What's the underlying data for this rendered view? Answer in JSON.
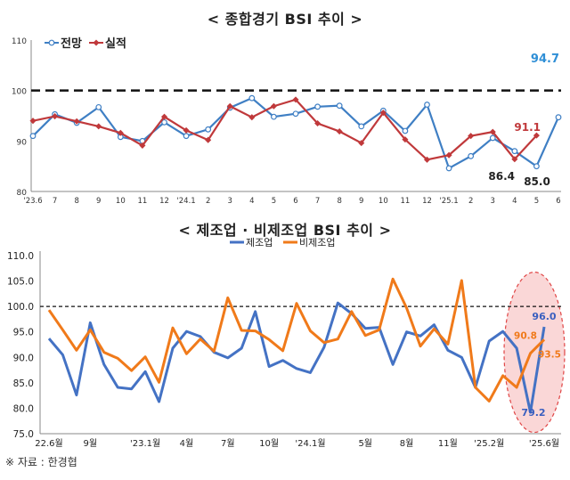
{
  "source": "※ 자료 : 한경협",
  "chart_data": [
    {
      "type": "line",
      "title": "< 종합경기 BSI 추이 >",
      "ylim": [
        80,
        110
      ],
      "yticks": [
        "80",
        "90",
        "100",
        "110"
      ],
      "reference_line": 100,
      "x_tick_labels": [
        "'23.6",
        "7",
        "8",
        "9",
        "10",
        "11",
        "12",
        "'24.1",
        "2",
        "3",
        "4",
        "5",
        "6",
        "7",
        "8",
        "9",
        "10",
        "11",
        "12",
        "'25.1",
        "2",
        "3",
        "4",
        "5",
        "6"
      ],
      "series": [
        {
          "name": "전망",
          "color": "#3f7fc4",
          "values": [
            91.0,
            95.3,
            93.6,
            96.7,
            90.8,
            90.0,
            93.7,
            91.0,
            92.3,
            96.6,
            98.5,
            94.8,
            95.4,
            96.8,
            97.0,
            92.9,
            96.0,
            92.0,
            97.2,
            84.6,
            87.0,
            90.6,
            88.0,
            85.0,
            94.7
          ]
        },
        {
          "name": "실적",
          "color": "#c0393b",
          "values": [
            94.0,
            94.9,
            93.9,
            92.9,
            91.6,
            89.1,
            94.8,
            92.1,
            90.2,
            96.9,
            94.7,
            96.9,
            98.2,
            93.5,
            91.9,
            89.6,
            95.6,
            90.3,
            86.3,
            87.2,
            91.0,
            91.8,
            86.4,
            91.1,
            null
          ]
        }
      ],
      "annotations": [
        {
          "label": "94.7",
          "color": "#2f8fd6"
        },
        {
          "label": "91.1",
          "color": "#c0393b"
        },
        {
          "label": "86.4",
          "color": "#222222"
        },
        {
          "label": "85.0",
          "color": "#222222"
        }
      ]
    },
    {
      "type": "line",
      "title": "< 제조업 · 비제조업 BSI 추이 >",
      "ylim": [
        75,
        110
      ],
      "yticks": [
        "75.0",
        "80.0",
        "85.0",
        "90.0",
        "95.0",
        "100.0",
        "105.0",
        "110.0"
      ],
      "reference_line": 100,
      "x_tick_labels": [
        "22.6월",
        "9월",
        "'23.1월",
        "4월",
        "7월",
        "10월",
        "'24.1월",
        "5월",
        "8월",
        "11월",
        "'25.2월",
        "'25.6월"
      ],
      "series": [
        {
          "name": "제조업",
          "color": "#4472c4",
          "values": [
            93.7,
            90.5,
            82.6,
            96.8,
            88.6,
            84.1,
            83.8,
            87.2,
            81.3,
            91.8,
            95.1,
            94.1,
            91.0,
            89.9,
            91.8,
            99.0,
            88.2,
            89.4,
            87.8,
            87.0,
            92.0,
            100.7,
            98.6,
            95.7,
            95.9,
            88.6,
            95.0,
            94.2,
            96.4,
            91.4,
            90.0,
            84.1,
            93.2,
            95.1,
            91.8,
            79.2,
            96.0
          ]
        },
        {
          "name": "비제조업",
          "color": "#f07a1a",
          "values": [
            99.3,
            95.4,
            91.4,
            95.4,
            91.0,
            89.8,
            87.4,
            90.1,
            85.1,
            95.8,
            90.7,
            93.6,
            91.2,
            101.7,
            95.3,
            95.2,
            93.5,
            91.3,
            100.6,
            95.2,
            92.9,
            93.6,
            99.0,
            94.3,
            95.4,
            105.4,
            99.7,
            92.2,
            95.6,
            92.6,
            105.1,
            84.1,
            81.4,
            86.4,
            84.1,
            90.8,
            93.5
          ]
        }
      ],
      "annotations": [
        {
          "label": "96.0",
          "color": "#3a5fbf"
        },
        {
          "label": "90.8",
          "color": "#f07a1a"
        },
        {
          "label": "93.5",
          "color": "#f07a1a"
        },
        {
          "label": "79.2",
          "color": "#3a5fbf"
        }
      ]
    }
  ]
}
